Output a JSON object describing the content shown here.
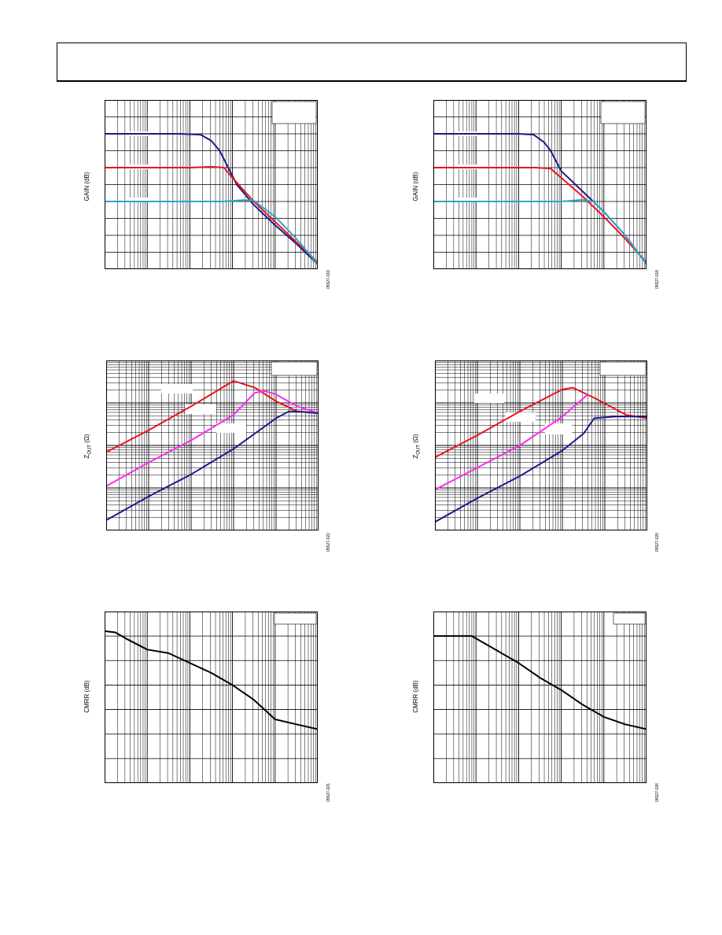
{
  "header": {},
  "chart_data": [
    {
      "id": "p1",
      "type": "line",
      "ylabel": "GAIN (dB)",
      "figure_code": "05527-019",
      "x_scale": "log",
      "x_decades": 5,
      "ylim": [
        0,
        10
      ],
      "x_norm_anchor_note": "",
      "series": [
        {
          "color": "#1a1a8c",
          "x": [
            0,
            0.35,
            0.45,
            0.5,
            0.54,
            0.58,
            0.62,
            0.7,
            0.8,
            0.9,
            1.0
          ],
          "y": [
            8,
            8,
            7.95,
            7.6,
            7.0,
            6.0,
            5.0,
            3.8,
            2.6,
            1.5,
            0.3
          ]
        },
        {
          "color": "#e8141e",
          "x": [
            0,
            0.4,
            0.5,
            0.56,
            0.6,
            0.7,
            0.8,
            0.9,
            1.0
          ],
          "y": [
            6,
            6,
            6.05,
            6.0,
            5.4,
            4.0,
            2.8,
            1.6,
            0.4
          ]
        },
        {
          "color": "#2aa8c8",
          "x": [
            0,
            0.55,
            0.65,
            0.7,
            0.8,
            0.9,
            1.0
          ],
          "y": [
            4,
            4,
            4.08,
            4.05,
            3.1,
            1.8,
            0.3
          ]
        }
      ],
      "legend": "top-right"
    },
    {
      "id": "p2",
      "type": "line",
      "ylabel": "GAIN (dB)",
      "figure_code": "05527-018",
      "x_scale": "log",
      "x_decades": 5,
      "ylim": [
        0,
        10
      ],
      "series": [
        {
          "color": "#1a1a8c",
          "x": [
            0,
            0.4,
            0.47,
            0.52,
            0.55,
            0.6,
            0.7,
            0.8,
            0.9,
            1.0
          ],
          "y": [
            8,
            8,
            7.95,
            7.5,
            7.0,
            5.8,
            4.6,
            3.4,
            2.0,
            0.3
          ]
        },
        {
          "color": "#e8141e",
          "x": [
            0,
            0.48,
            0.55,
            0.6,
            0.7,
            0.8,
            0.9,
            1.0
          ],
          "y": [
            6,
            6,
            5.95,
            5.4,
            4.3,
            3.1,
            1.8,
            0.4
          ]
        },
        {
          "color": "#2aa8c8",
          "x": [
            0,
            0.6,
            0.7,
            0.75,
            0.8,
            0.9,
            1.0
          ],
          "y": [
            4,
            4,
            4.1,
            4.0,
            3.4,
            2.0,
            0.3
          ]
        }
      ],
      "legend": "top-right"
    },
    {
      "id": "p3",
      "type": "line",
      "ylabel": "Z",
      "ylabel_sub": "OUT",
      "ylabel_unit": "(Ω)",
      "figure_code": "05527-022",
      "x_scale": "log",
      "x_decades": 5,
      "y_scale": "log",
      "y_decades": 4,
      "ylim": [
        0,
        10
      ],
      "series": [
        {
          "color": "#e8141e",
          "x": [
            0,
            0.2,
            0.4,
            0.6,
            0.7,
            0.8,
            0.9,
            1.0
          ],
          "y": [
            4.6,
            5.9,
            7.3,
            8.8,
            8.4,
            7.6,
            7.0,
            6.9
          ]
        },
        {
          "color": "#ff2af0",
          "x": [
            0,
            0.2,
            0.4,
            0.6,
            0.7,
            0.75,
            0.8,
            0.9,
            1.0
          ],
          "y": [
            2.6,
            4.0,
            5.3,
            6.8,
            8.1,
            8.2,
            8.0,
            7.3,
            6.9
          ]
        },
        {
          "color": "#1a1a8c",
          "x": [
            0,
            0.2,
            0.4,
            0.6,
            0.8,
            0.86,
            0.9,
            1.0
          ],
          "y": [
            0.6,
            2.0,
            3.3,
            4.8,
            6.6,
            7.0,
            7.0,
            6.9
          ]
        }
      ],
      "legend": "top-right"
    },
    {
      "id": "p4",
      "type": "line",
      "ylabel": "Z",
      "ylabel_sub": "OUT",
      "ylabel_unit": "(Ω)",
      "figure_code": "05527-020",
      "x_scale": "log",
      "x_decades": 5,
      "y_scale": "log",
      "y_decades": 4,
      "ylim": [
        0,
        10
      ],
      "series": [
        {
          "color": "#e8141e",
          "x": [
            0,
            0.2,
            0.4,
            0.6,
            0.65,
            0.75,
            0.9,
            1.0
          ],
          "y": [
            4.3,
            5.6,
            7.0,
            8.3,
            8.4,
            7.8,
            6.8,
            6.6
          ]
        },
        {
          "color": "#ff2af0",
          "x": [
            0,
            0.2,
            0.4,
            0.6,
            0.72
          ],
          "y": [
            2.4,
            3.7,
            5.0,
            6.7,
            8.0
          ]
        },
        {
          "color": "#1a1a8c",
          "x": [
            0,
            0.2,
            0.4,
            0.6,
            0.7,
            0.75,
            0.85,
            1.0
          ],
          "y": [
            0.5,
            1.9,
            3.2,
            4.7,
            5.7,
            6.6,
            6.7,
            6.7
          ]
        }
      ],
      "legend": "top-right"
    },
    {
      "id": "p5",
      "type": "line",
      "ylabel": "CMRR (dB)",
      "figure_code": "05527-021",
      "x_scale": "log",
      "x_decades": 5,
      "ylim": [
        0,
        7
      ],
      "series": [
        {
          "color": "#000000",
          "x": [
            0,
            0.05,
            0.1,
            0.2,
            0.3,
            0.4,
            0.5,
            0.6,
            0.7,
            0.8,
            0.9,
            1.0
          ],
          "y": [
            6.2,
            6.15,
            5.9,
            5.45,
            5.3,
            4.9,
            4.5,
            4.0,
            3.4,
            2.6,
            2.4,
            2.2
          ]
        }
      ],
      "legend": "top-right"
    },
    {
      "id": "p6",
      "type": "line",
      "ylabel": "CMRR (dB)",
      "figure_code": "05527-026",
      "x_scale": "log",
      "x_decades": 5,
      "ylim": [
        0,
        7
      ],
      "series": [
        {
          "color": "#000000",
          "x": [
            0,
            0.18,
            0.3,
            0.4,
            0.5,
            0.6,
            0.7,
            0.8,
            0.9,
            1.0
          ],
          "y": [
            6.0,
            6.0,
            5.4,
            4.9,
            4.3,
            3.8,
            3.2,
            2.7,
            2.4,
            2.2
          ]
        }
      ],
      "legend": "top-right"
    }
  ]
}
